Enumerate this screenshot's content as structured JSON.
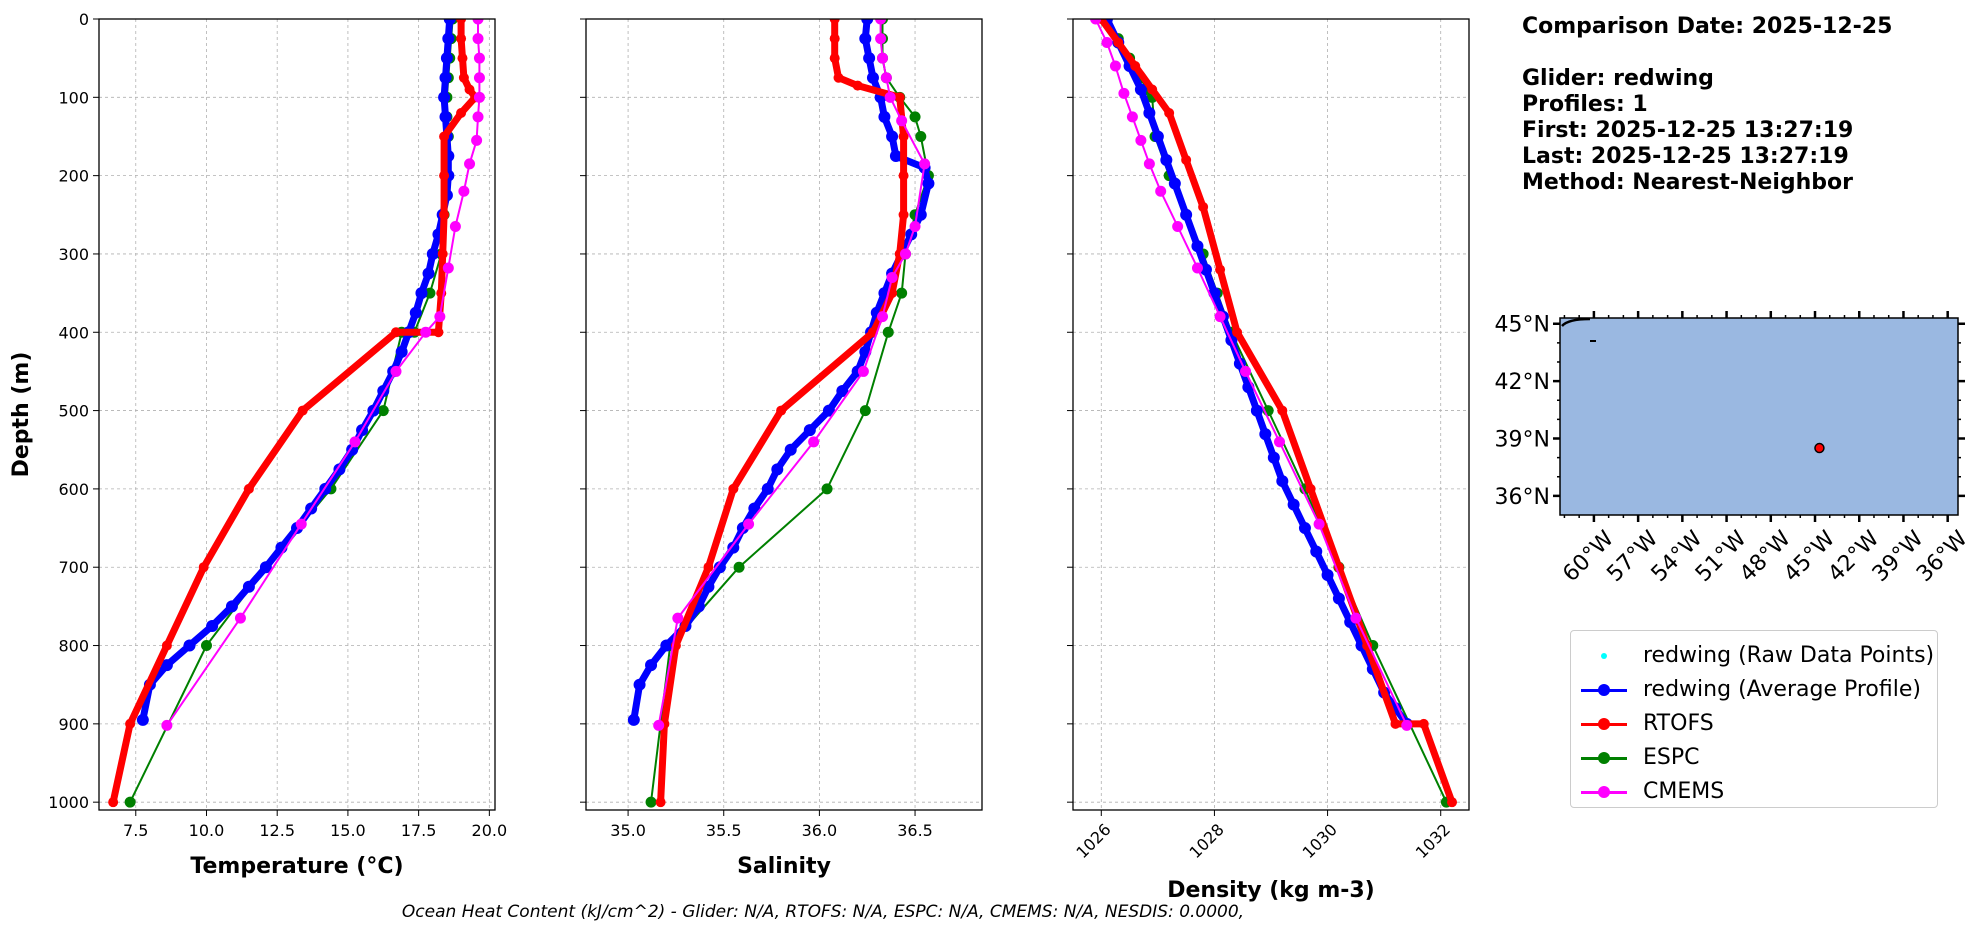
{
  "info": {
    "lines": [
      "Comparison Date: 2025-12-25",
      "",
      "Glider: redwing",
      "Profiles: 1",
      "First: 2025-12-25 13:27:19",
      "Last: 2025-12-25 13:27:19",
      "Method: Nearest-Neighbor"
    ]
  },
  "footer": "Ocean Heat Content (kJ/cm^2) - Glider: N/A,  RTOFS: N/A,  ESPC: N/A,  CMEMS: N/A,  NESDIS: 0.0000,",
  "legend": [
    {
      "label": "redwing (Raw Data Points)",
      "color": "#00ffff",
      "style": "raw"
    },
    {
      "label": "redwing (Average Profile)",
      "color": "#0000ff",
      "style": "line"
    },
    {
      "label": "RTOFS",
      "color": "#ff0000",
      "style": "line"
    },
    {
      "label": "ESPC",
      "color": "#008000",
      "style": "line"
    },
    {
      "label": "CMEMS",
      "color": "#ff00ff",
      "style": "line"
    }
  ],
  "map": {
    "ocean_color": "#9ab8e1",
    "lat_ticks": [
      "45°N",
      "42°N",
      "39°N",
      "36°N"
    ],
    "lat_values": [
      45,
      42,
      39,
      36
    ],
    "lon_ticks": [
      "60°W",
      "57°W",
      "54°W",
      "51°W",
      "48°W",
      "45°W",
      "42°W",
      "39°W",
      "36°W"
    ],
    "lon_values": [
      -60,
      -57,
      -54,
      -51,
      -48,
      -45,
      -42,
      -39,
      -36
    ],
    "lon_range": [
      -62.3,
      -35.3
    ],
    "lat_range": [
      35.0,
      45.3
    ],
    "glider_position": {
      "lon": -44.7,
      "lat": 38.5
    }
  },
  "chart_data": [
    {
      "type": "line",
      "xlabel": "Temperature (°C)",
      "ylabel": "Depth (m)",
      "xlim": [
        6.2,
        20.2
      ],
      "ylim": [
        1010,
        0
      ],
      "xticks": [
        7.5,
        10.0,
        12.5,
        15.0,
        17.5,
        20.0
      ],
      "xtick_labels": [
        "7.5",
        "10.0",
        "12.5",
        "15.0",
        "17.5",
        "20.0"
      ],
      "yticks": [
        0,
        100,
        200,
        300,
        400,
        500,
        600,
        700,
        800,
        900,
        1000
      ],
      "ytick_labels": [
        "0",
        "100",
        "200",
        "300",
        "400",
        "500",
        "600",
        "700",
        "800",
        "900",
        "1000"
      ],
      "grid": true,
      "series": [
        {
          "name": "redwing (Average Profile)",
          "color": "#0000ff",
          "x": [
            18.6,
            18.55,
            18.5,
            18.45,
            18.4,
            18.45,
            18.5,
            18.55,
            18.55,
            18.5,
            18.35,
            18.2,
            18.0,
            17.85,
            17.6,
            17.4,
            17.15,
            16.9,
            16.6,
            16.25,
            15.9,
            15.5,
            15.15,
            14.7,
            14.2,
            13.7,
            13.2,
            12.65,
            12.1,
            11.5,
            10.9,
            10.2,
            9.4,
            8.6,
            8.0,
            7.75
          ],
          "y": [
            0,
            25,
            50,
            75,
            100,
            125,
            150,
            175,
            200,
            225,
            250,
            275,
            300,
            325,
            350,
            375,
            400,
            425,
            450,
            475,
            500,
            525,
            550,
            575,
            600,
            625,
            650,
            675,
            700,
            725,
            750,
            775,
            800,
            825,
            850,
            895
          ]
        },
        {
          "name": "RTOFS",
          "color": "#ff0000",
          "x": [
            19.0,
            19.0,
            19.05,
            19.1,
            19.3,
            19.5,
            19.0,
            18.4,
            18.4,
            18.4,
            18.35,
            18.3,
            18.2,
            16.7,
            13.4,
            11.5,
            9.9,
            8.6,
            7.3,
            6.7
          ],
          "y": [
            0,
            25,
            50,
            75,
            90,
            100,
            120,
            150,
            200,
            250,
            300,
            350,
            400,
            400,
            500,
            600,
            700,
            800,
            900,
            1000
          ]
        },
        {
          "name": "ESPC",
          "color": "#008000",
          "x": [
            18.7,
            18.65,
            18.6,
            18.55,
            18.5,
            18.5,
            18.55,
            18.5,
            18.4,
            18.3,
            17.9,
            17.35,
            16.9,
            16.25,
            14.4,
            12.1,
            10.0,
            7.3
          ],
          "y": [
            0,
            25,
            50,
            75,
            100,
            125,
            150,
            200,
            250,
            300,
            350,
            400,
            400,
            500,
            600,
            700,
            800,
            1000
          ]
        },
        {
          "name": "CMEMS",
          "color": "#ff00ff",
          "x": [
            19.6,
            19.6,
            19.65,
            19.65,
            19.65,
            19.6,
            19.55,
            19.3,
            19.1,
            18.8,
            18.55,
            18.25,
            17.75,
            16.7,
            15.25,
            13.35,
            11.2,
            8.6
          ],
          "y": [
            0,
            25,
            50,
            75,
            100,
            125,
            155,
            185,
            220,
            265,
            318,
            380,
            400,
            450,
            540,
            645,
            765,
            902
          ]
        }
      ]
    },
    {
      "type": "line",
      "xlabel": "Salinity",
      "xlim": [
        34.78,
        36.85
      ],
      "ylim": [
        1010,
        0
      ],
      "xticks": [
        35.0,
        35.5,
        36.0,
        36.5
      ],
      "xtick_labels": [
        "35.0",
        "35.5",
        "36.0",
        "36.5"
      ],
      "grid": true,
      "series": [
        {
          "name": "redwing (Average Profile)",
          "color": "#0000ff",
          "x": [
            36.25,
            36.24,
            36.26,
            36.28,
            36.32,
            36.34,
            36.38,
            36.4,
            36.55,
            36.57,
            36.53,
            36.48,
            36.43,
            36.38,
            36.34,
            36.3,
            36.27,
            36.24,
            36.2,
            36.12,
            36.05,
            35.95,
            35.85,
            35.78,
            35.73,
            35.66,
            35.6,
            35.55,
            35.48,
            35.42,
            35.37,
            35.3,
            35.2,
            35.12,
            35.06,
            35.03
          ],
          "y": [
            0,
            25,
            50,
            75,
            100,
            125,
            150,
            175,
            190,
            210,
            250,
            275,
            300,
            325,
            350,
            375,
            400,
            425,
            450,
            475,
            500,
            525,
            550,
            575,
            600,
            625,
            650,
            675,
            700,
            725,
            750,
            775,
            800,
            825,
            850,
            895
          ]
        },
        {
          "name": "RTOFS",
          "color": "#ff0000",
          "x": [
            36.08,
            36.08,
            36.08,
            36.1,
            36.2,
            36.42,
            36.44,
            36.44,
            36.44,
            36.42,
            36.38,
            36.28,
            35.8,
            35.55,
            35.42,
            35.25,
            35.19,
            35.17
          ],
          "y": [
            0,
            25,
            50,
            75,
            85,
            100,
            150,
            200,
            250,
            300,
            350,
            400,
            500,
            600,
            700,
            800,
            900,
            1000
          ]
        },
        {
          "name": "ESPC",
          "color": "#008000",
          "x": [
            36.33,
            36.33,
            36.33,
            36.35,
            36.42,
            36.5,
            36.53,
            36.57,
            36.5,
            36.45,
            36.43,
            36.36,
            36.24,
            36.04,
            35.58,
            35.22,
            35.12
          ],
          "y": [
            0,
            25,
            50,
            75,
            100,
            125,
            150,
            200,
            250,
            300,
            350,
            400,
            500,
            600,
            700,
            800,
            1000
          ]
        },
        {
          "name": "CMEMS",
          "color": "#ff00ff",
          "x": [
            36.32,
            36.32,
            36.33,
            36.35,
            36.37,
            36.43,
            36.55,
            36.5,
            36.45,
            36.38,
            36.33,
            36.23,
            35.97,
            35.63,
            35.26,
            35.16
          ],
          "y": [
            0,
            25,
            50,
            75,
            100,
            130,
            185,
            265,
            300,
            330,
            380,
            450,
            540,
            645,
            765,
            902
          ]
        }
      ]
    },
    {
      "type": "line",
      "xlabel": "Density (kg m-3)",
      "xlim": [
        1025.5,
        1032.5
      ],
      "ylim": [
        1010,
        0
      ],
      "xticks": [
        1026,
        1028,
        1030,
        1032
      ],
      "xtick_labels": [
        "1026",
        "1028",
        "1030",
        "1032"
      ],
      "grid": true,
      "series": [
        {
          "name": "redwing (Average Profile)",
          "color": "#0000ff",
          "x": [
            1026.1,
            1026.3,
            1026.5,
            1026.7,
            1026.85,
            1027.0,
            1027.15,
            1027.3,
            1027.5,
            1027.7,
            1027.85,
            1028.0,
            1028.15,
            1028.3,
            1028.45,
            1028.6,
            1028.75,
            1028.9,
            1029.05,
            1029.2,
            1029.4,
            1029.6,
            1029.8,
            1030.0,
            1030.2,
            1030.4,
            1030.6,
            1030.8,
            1031.0,
            1031.2,
            1031.4
          ],
          "y": [
            0,
            30,
            60,
            90,
            120,
            150,
            180,
            210,
            250,
            290,
            320,
            350,
            380,
            410,
            440,
            470,
            500,
            530,
            560,
            590,
            620,
            650,
            680,
            710,
            740,
            770,
            800,
            830,
            860,
            880,
            900
          ]
        },
        {
          "name": "RTOFS",
          "color": "#ff0000",
          "x": [
            1026.0,
            1026.3,
            1026.6,
            1026.9,
            1027.2,
            1027.5,
            1027.8,
            1028.1,
            1028.4,
            1029.2,
            1029.7,
            1030.2,
            1030.7,
            1031.2,
            1031.7,
            1032.2
          ],
          "y": [
            0,
            30,
            60,
            90,
            120,
            180,
            240,
            320,
            400,
            500,
            600,
            700,
            800,
            900,
            900,
            1000
          ]
        },
        {
          "name": "ESPC",
          "color": "#008000",
          "x": [
            1026.1,
            1026.3,
            1026.5,
            1026.7,
            1026.8,
            1026.9,
            1026.95,
            1027.2,
            1027.5,
            1027.8,
            1028.05,
            1028.3,
            1028.95,
            1029.6,
            1030.2,
            1030.8,
            1032.1
          ],
          "y": [
            0,
            25,
            50,
            75,
            90,
            100,
            150,
            200,
            250,
            300,
            350,
            400,
            500,
            600,
            700,
            800,
            1000
          ]
        },
        {
          "name": "CMEMS",
          "color": "#ff00ff",
          "x": [
            1025.9,
            1026.1,
            1026.25,
            1026.4,
            1026.55,
            1026.7,
            1026.85,
            1027.05,
            1027.35,
            1027.7,
            1028.1,
            1028.55,
            1029.15,
            1029.85,
            1030.5,
            1031.4
          ],
          "y": [
            0,
            30,
            60,
            95,
            125,
            155,
            185,
            220,
            265,
            318,
            380,
            450,
            540,
            645,
            765,
            902
          ]
        }
      ]
    }
  ]
}
